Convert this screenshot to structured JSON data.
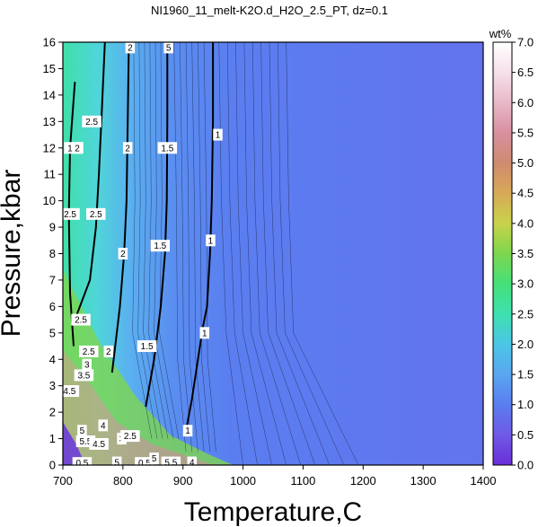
{
  "chart_data": {
    "type": "heatmap",
    "title": "NI1960_11_melt-K2O.d_H2O_2.5_PT, dz=0.1",
    "xlabel": "Temperature,C",
    "ylabel": "Pressure,kbar",
    "colorbar_label": "wt%",
    "xlim": [
      700,
      1400
    ],
    "ylim": [
      0,
      16
    ],
    "clim": [
      0.0,
      7.0
    ],
    "x_ticks": [
      "700",
      "800",
      "900",
      "1000",
      "1100",
      "1200",
      "1300",
      "1400"
    ],
    "y_ticks": [
      "0",
      "1",
      "2",
      "3",
      "4",
      "5",
      "6",
      "7",
      "8",
      "9",
      "10",
      "11",
      "12",
      "13",
      "14",
      "15",
      "16"
    ],
    "colorbar_ticks": [
      "0.0",
      "0.5",
      "1.0",
      "1.5",
      "2.0",
      "2.5",
      "3.0",
      "3.5",
      "4.0",
      "4.5",
      "5.0",
      "5.5",
      "6.0",
      "6.5",
      "7.0"
    ],
    "colorbar_stops": [
      "#6b2dd8",
      "#6f5ae6",
      "#5a7df0",
      "#5aa6f0",
      "#4bc6e6",
      "#3fe0b0",
      "#45e07a",
      "#7ed64f",
      "#c7d24a",
      "#d8a958",
      "#d08a70",
      "#d890a0",
      "#e8b8c8",
      "#f6e0ea",
      "#ffffff"
    ],
    "contours": [
      {
        "level": "1",
        "T": [
          905,
          915,
          925,
          933,
          940,
          945,
          948,
          950,
          950
        ],
        "P": [
          1.3,
          2.5,
          4.0,
          5.2,
          6.0,
          8.0,
          10.0,
          13.0,
          16.0
        ]
      },
      {
        "level": "1.5",
        "T": [
          838,
          852,
          863,
          870,
          873,
          874,
          874
        ],
        "P": [
          2.2,
          4.0,
          6.0,
          8.0,
          10.0,
          13.0,
          16.0
        ]
      },
      {
        "level": "2",
        "T": [
          782,
          795,
          802,
          806,
          808,
          810
        ],
        "P": [
          3.5,
          6.0,
          8.0,
          10.0,
          13.0,
          16.0
        ]
      },
      {
        "level": "2.5",
        "T": [
          720,
          745,
          755,
          760,
          765,
          770
        ],
        "P": [
          5.5,
          7.0,
          9.0,
          11.0,
          13.5,
          16.0
        ]
      },
      {
        "level": "2.5",
        "T": [
          718,
          712,
          710,
          712,
          720
        ],
        "P": [
          4.5,
          6.5,
          9.5,
          12.0,
          14.5
        ]
      }
    ],
    "contour_labels": [
      {
        "text": "0.5",
        "T": 732,
        "P": 0.08
      },
      {
        "text": "0.5",
        "T": 836,
        "P": 0.08
      },
      {
        "text": "1",
        "T": 958,
        "P": 12.5
      },
      {
        "text": "1",
        "T": 946,
        "P": 8.5
      },
      {
        "text": "1",
        "T": 936,
        "P": 5.0
      },
      {
        "text": "1",
        "T": 908,
        "P": 1.3
      },
      {
        "text": "1.5",
        "T": 874,
        "P": 12.0
      },
      {
        "text": "1.5",
        "T": 862,
        "P": 8.3
      },
      {
        "text": "1.5",
        "T": 840,
        "P": 4.5
      },
      {
        "text": "2",
        "T": 808,
        "P": 12.0
      },
      {
        "text": "2",
        "T": 800,
        "P": 8.0
      },
      {
        "text": "2",
        "T": 776,
        "P": 4.3
      },
      {
        "text": "2.5",
        "T": 755,
        "P": 9.5
      },
      {
        "text": "2.5",
        "T": 730,
        "P": 5.5
      },
      {
        "text": "2.5",
        "T": 712,
        "P": 9.5
      },
      {
        "text": "2.5",
        "T": 748,
        "P": 13.0
      },
      {
        "text": "1.5",
        "T": 718,
        "P": 12.0
      },
      {
        "text": "2",
        "T": 724,
        "P": 12.0
      },
      {
        "text": "2",
        "T": 812,
        "P": 15.8
      },
      {
        "text": "5",
        "T": 876,
        "P": 15.8
      },
      {
        "text": "2.5",
        "T": 743,
        "P": 4.3
      },
      {
        "text": "3",
        "T": 740,
        "P": 3.8
      },
      {
        "text": "3.5",
        "T": 735,
        "P": 3.4
      },
      {
        "text": "4.5",
        "T": 711,
        "P": 2.8
      },
      {
        "text": "4",
        "T": 767,
        "P": 1.5
      },
      {
        "text": "5",
        "T": 732,
        "P": 1.3
      },
      {
        "text": "5.5",
        "T": 738,
        "P": 0.9
      },
      {
        "text": "4.5",
        "T": 760,
        "P": 0.8
      },
      {
        "text": "3",
        "T": 798,
        "P": 1.0
      },
      {
        "text": "2.5",
        "T": 812,
        "P": 1.1
      },
      {
        "text": "5",
        "T": 852,
        "P": 0.25
      },
      {
        "text": "5.5",
        "T": 880,
        "P": 0.1
      },
      {
        "text": "4",
        "T": 915,
        "P": 0.1
      },
      {
        "text": "5",
        "T": 790,
        "P": 0.1
      }
    ]
  }
}
